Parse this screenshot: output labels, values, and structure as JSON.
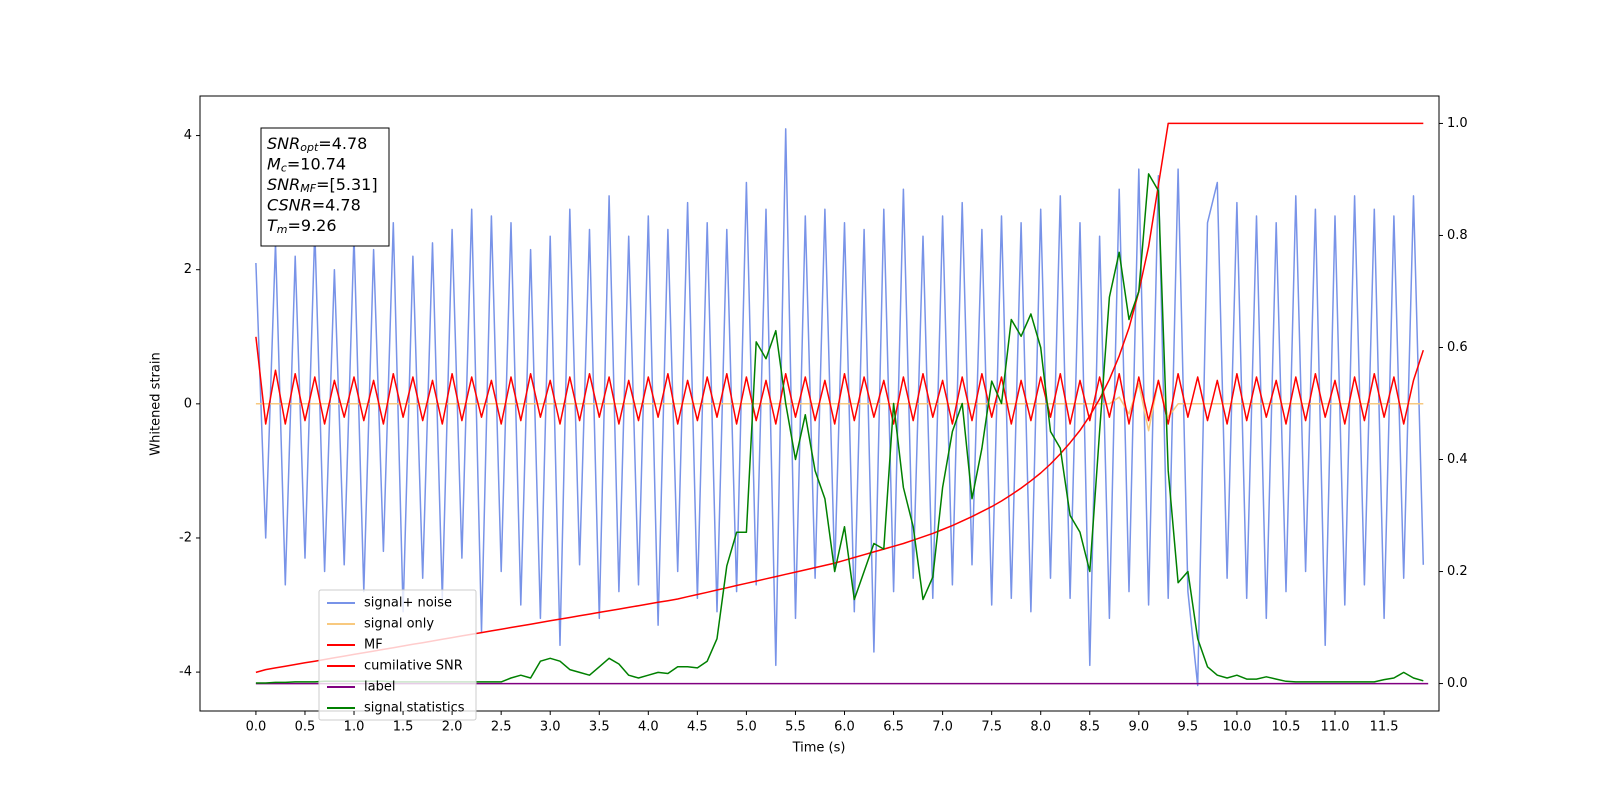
{
  "chart_data": {
    "type": "line",
    "ylabel": "Whitened strain",
    "xlabel": "Time (s)",
    "xlim": [
      -0.57,
      12.06
    ],
    "ylim": [
      -4.58,
      4.59
    ],
    "y2lim": [
      -0.049,
      1.049
    ],
    "xticks": [
      {
        "value": 0,
        "label": "0.0"
      },
      0.5,
      {
        "value": 1,
        "label": "1.0"
      },
      1.5,
      {
        "value": 2,
        "label": "2.0"
      },
      2.5,
      {
        "value": 3,
        "label": "3.0"
      },
      3.5,
      {
        "value": 4,
        "label": "4.0"
      },
      4.5,
      {
        "value": 5,
        "label": "5.0"
      },
      5.5,
      {
        "value": 6,
        "label": "6.0"
      },
      6.5,
      {
        "value": 7,
        "label": "7.0"
      },
      7.5,
      {
        "value": 8,
        "label": "8.0"
      },
      8.5,
      {
        "value": 9,
        "label": "9.0"
      },
      9.5,
      {
        "value": 10,
        "label": "10.0"
      },
      10.5,
      {
        "value": 11,
        "label": "11.0"
      },
      11.5
    ],
    "yticks": [
      -4,
      -2,
      0,
      2,
      4
    ],
    "y2ticks": [
      {
        "value": 0,
        "label": "0.0"
      },
      0.2,
      0.4,
      0.6,
      0.8,
      {
        "value": 1,
        "label": "1.0"
      }
    ],
    "legend": "lower left",
    "x": [
      0,
      0.1,
      0.2,
      0.3,
      0.4,
      0.5,
      0.6,
      0.7,
      0.8,
      0.9,
      1,
      1.1,
      1.2,
      1.3,
      1.4,
      1.5,
      1.6,
      1.7,
      1.8,
      1.9,
      2,
      2.1,
      2.2,
      2.3,
      2.4,
      2.5,
      2.6,
      2.7,
      2.8,
      2.9,
      3,
      3.1,
      3.2,
      3.3,
      3.4,
      3.5,
      3.6,
      3.7,
      3.8,
      3.9,
      4,
      4.1,
      4.2,
      4.3,
      4.4,
      4.5,
      4.6,
      4.7,
      4.8,
      4.9,
      5,
      5.1,
      5.2,
      5.3,
      5.4,
      5.5,
      5.6,
      5.7,
      5.8,
      5.9,
      6,
      6.1,
      6.2,
      6.3,
      6.4,
      6.5,
      6.6,
      6.7,
      6.8,
      6.9,
      7,
      7.1,
      7.2,
      7.3,
      7.4,
      7.5,
      7.6,
      7.7,
      7.8,
      7.9,
      8,
      8.1,
      8.2,
      8.3,
      8.4,
      8.5,
      8.6,
      8.7,
      8.8,
      8.9,
      9,
      9.1,
      9.2,
      9.3,
      9.4,
      9.5,
      9.6,
      9.7,
      9.8,
      9.9,
      10,
      10.1,
      10.2,
      10.3,
      10.4,
      10.5,
      10.6,
      10.7,
      10.8,
      10.9,
      11,
      11.1,
      11.2,
      11.3,
      11.4,
      11.5,
      11.6,
      11.7,
      11.8,
      11.9
    ],
    "series": [
      {
        "name": "signal+ noise",
        "color": "#7893e8",
        "values": [
          2.1,
          -2.0,
          2.4,
          -2.7,
          2.2,
          -2.3,
          2.6,
          -2.5,
          2.0,
          -2.4,
          2.5,
          -2.8,
          2.3,
          -2.2,
          2.7,
          -3.1,
          2.2,
          -2.6,
          2.4,
          -2.9,
          2.6,
          -2.3,
          2.9,
          -3.4,
          2.8,
          -2.5,
          2.7,
          -3.0,
          2.3,
          -3.2,
          2.5,
          -3.6,
          2.9,
          -2.4,
          2.6,
          -3.2,
          3.1,
          -2.8,
          2.5,
          -2.7,
          2.8,
          -3.3,
          2.6,
          -2.5,
          3.0,
          -2.9,
          2.7,
          -3.1,
          2.6,
          -2.8,
          3.3,
          -2.7,
          2.9,
          -3.9,
          4.1,
          -3.2,
          2.8,
          -2.6,
          2.9,
          -2.5,
          2.7,
          -3.1,
          2.6,
          -3.7,
          2.9,
          -2.8,
          3.2,
          -2.6,
          2.5,
          -2.9,
          2.8,
          -2.7,
          3.0,
          -2.4,
          2.6,
          -3.0,
          2.8,
          -2.9,
          2.7,
          -3.1,
          2.9,
          -2.6,
          3.1,
          -2.9,
          2.7,
          -3.9,
          2.5,
          -3.2,
          3.2,
          -2.8,
          3.5,
          -3.0,
          3.4,
          -2.9,
          3.5,
          -2.8,
          -4.2,
          2.7,
          3.3,
          -2.6,
          3.0,
          -2.9,
          2.8,
          -3.2,
          2.7,
          -2.8,
          3.1,
          -2.5,
          2.9,
          -3.6,
          2.8,
          -3.0,
          3.1,
          -2.7,
          2.9,
          -3.2,
          2.8,
          -2.6,
          3.1,
          -2.4
        ]
      },
      {
        "name": "signal only",
        "color": "#f8c97f",
        "values": [
          0,
          0,
          0,
          0,
          0,
          0,
          0,
          0,
          0,
          0,
          0,
          0,
          0,
          0,
          0,
          0,
          0,
          0,
          0,
          0,
          0,
          0,
          0,
          0,
          0,
          0,
          0,
          0,
          0,
          0,
          0,
          0,
          0,
          0,
          0,
          0,
          0,
          0,
          0,
          0,
          0,
          0,
          0,
          0,
          0,
          0,
          0,
          0,
          0,
          0,
          0,
          0,
          0,
          0,
          0,
          0,
          0,
          0,
          0,
          0,
          0,
          0,
          0,
          0,
          0,
          0,
          0,
          0,
          0,
          0,
          0,
          0,
          0,
          0,
          0,
          0,
          0,
          0,
          0,
          0,
          0,
          0,
          0,
          0,
          0,
          0,
          0,
          0,
          0.1,
          -0.15,
          0.3,
          -0.4,
          0.35,
          -0.2,
          0,
          0,
          0,
          0,
          0,
          0,
          0,
          0,
          0,
          0,
          0,
          0,
          0,
          0,
          0,
          0,
          0,
          0,
          0,
          0,
          0,
          0,
          0,
          0,
          0,
          0
        ]
      },
      {
        "name": "MF",
        "color": "#ff0000",
        "values": [
          1.0,
          -0.3,
          0.5,
          -0.3,
          0.45,
          -0.25,
          0.4,
          -0.3,
          0.35,
          -0.2,
          0.4,
          -0.25,
          0.35,
          -0.3,
          0.45,
          -0.2,
          0.4,
          -0.25,
          0.35,
          -0.3,
          0.45,
          -0.25,
          0.4,
          -0.2,
          0.35,
          -0.3,
          0.4,
          -0.25,
          0.45,
          -0.2,
          0.35,
          -0.3,
          0.4,
          -0.25,
          0.45,
          -0.2,
          0.4,
          -0.3,
          0.35,
          -0.25,
          0.4,
          -0.2,
          0.45,
          -0.3,
          0.35,
          -0.25,
          0.4,
          -0.2,
          0.45,
          -0.3,
          0.4,
          -0.25,
          0.35,
          -0.3,
          0.45,
          -0.2,
          0.4,
          -0.25,
          0.35,
          -0.3,
          0.45,
          -0.25,
          0.4,
          -0.2,
          0.35,
          -0.3,
          0.4,
          -0.25,
          0.45,
          -0.2,
          0.35,
          -0.3,
          0.4,
          -0.25,
          0.45,
          -0.2,
          0.4,
          -0.3,
          0.35,
          -0.25,
          0.4,
          -0.2,
          0.45,
          -0.3,
          0.35,
          -0.25,
          0.4,
          -0.2,
          0.45,
          -0.3,
          0.4,
          -0.25,
          0.35,
          -0.3,
          0.45,
          -0.2,
          0.4,
          -0.25,
          0.35,
          -0.3,
          0.45,
          -0.25,
          0.4,
          -0.2,
          0.35,
          -0.3,
          0.4,
          -0.25,
          0.45,
          -0.2,
          0.35,
          -0.3,
          0.4,
          -0.25,
          0.45,
          -0.2,
          0.4,
          -0.3,
          0.35,
          0.8
        ]
      },
      {
        "name": "cumilative SNR",
        "color": "#ff0000",
        "axis": "y2",
        "values": [
          0.02,
          0.025,
          0.028,
          0.031,
          0.034,
          0.037,
          0.04,
          0.043,
          0.046,
          0.049,
          0.052,
          0.055,
          0.058,
          0.061,
          0.064,
          0.067,
          0.07,
          0.073,
          0.076,
          0.079,
          0.082,
          0.085,
          0.088,
          0.091,
          0.094,
          0.097,
          0.1,
          0.103,
          0.106,
          0.109,
          0.112,
          0.115,
          0.118,
          0.121,
          0.124,
          0.127,
          0.13,
          0.133,
          0.136,
          0.139,
          0.142,
          0.145,
          0.148,
          0.151,
          0.155,
          0.159,
          0.163,
          0.167,
          0.171,
          0.175,
          0.179,
          0.183,
          0.187,
          0.191,
          0.195,
          0.199,
          0.203,
          0.207,
          0.211,
          0.215,
          0.22,
          0.225,
          0.23,
          0.235,
          0.24,
          0.245,
          0.25,
          0.256,
          0.262,
          0.268,
          0.275,
          0.282,
          0.29,
          0.298,
          0.307,
          0.316,
          0.326,
          0.337,
          0.349,
          0.362,
          0.376,
          0.392,
          0.41,
          0.43,
          0.452,
          0.478,
          0.508,
          0.543,
          0.585,
          0.635,
          0.7,
          0.78,
          0.89,
          1,
          1,
          1,
          1,
          1,
          1,
          1,
          1,
          1,
          1,
          1,
          1,
          1,
          1,
          1,
          1,
          1,
          1,
          1,
          1,
          1,
          1,
          1,
          1,
          1,
          1,
          1
        ]
      },
      {
        "name": "label",
        "color": "#800080",
        "axis": "y2",
        "x": [
          0,
          11.95
        ],
        "values": [
          0,
          0
        ]
      },
      {
        "name": "signal statistics",
        "color": "#008000",
        "axis": "y2",
        "values": [
          0.001,
          0.001,
          0.002,
          0.002,
          0.003,
          0.003,
          0.003,
          0.004,
          0.004,
          0.004,
          0.004,
          0.004,
          0.004,
          0.004,
          0.003,
          0.003,
          0.003,
          0.003,
          0.003,
          0.003,
          0.003,
          0.003,
          0.003,
          0.003,
          0.003,
          0.003,
          0.01,
          0.015,
          0.01,
          0.04,
          0.045,
          0.04,
          0.025,
          0.02,
          0.015,
          0.03,
          0.045,
          0.035,
          0.015,
          0.01,
          0.015,
          0.02,
          0.018,
          0.03,
          0.03,
          0.028,
          0.04,
          0.08,
          0.21,
          0.27,
          0.27,
          0.61,
          0.58,
          0.63,
          0.5,
          0.4,
          0.48,
          0.38,
          0.33,
          0.2,
          0.28,
          0.15,
          0.2,
          0.25,
          0.24,
          0.5,
          0.35,
          0.28,
          0.15,
          0.19,
          0.35,
          0.45,
          0.5,
          0.33,
          0.42,
          0.54,
          0.5,
          0.65,
          0.62,
          0.66,
          0.6,
          0.45,
          0.42,
          0.3,
          0.27,
          0.2,
          0.45,
          0.69,
          0.77,
          0.65,
          0.7,
          0.91,
          0.88,
          0.38,
          0.18,
          0.2,
          0.08,
          0.03,
          0.015,
          0.01,
          0.015,
          0.008,
          0.008,
          0.012,
          0.008,
          0.004,
          0.003,
          0.003,
          0.003,
          0.003,
          0.003,
          0.003,
          0.003,
          0.003,
          0.003,
          0.007,
          0.01,
          0.02,
          0.01,
          0.005
        ]
      }
    ],
    "info_box": [
      {
        "name": "SNR",
        "sub": "opt",
        "text": "=4.78"
      },
      {
        "name": "M",
        "sub": "c",
        "text": "=10.74"
      },
      {
        "name": "SNR",
        "sub": "MF",
        "text": "=[5.31]"
      },
      {
        "name": "CSNR",
        "text": "=4.78"
      },
      {
        "name": "T",
        "sub": "m",
        "text": "=9.26"
      }
    ]
  }
}
